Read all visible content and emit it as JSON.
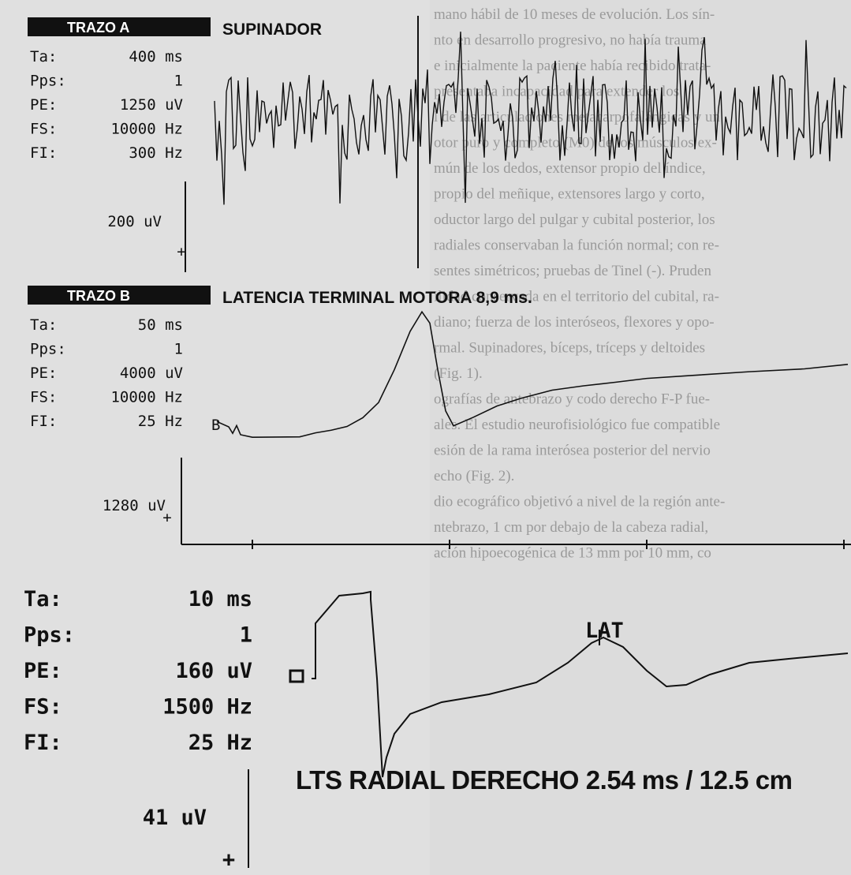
{
  "background_text": [
    "mano hábil de 10 meses de evolución. Los sín-",
    "nto en desarrollo progresivo, no había trauma",
    "e inicialmente la paciente había recibido trata-",
    "presentaba incapacidad para extender los",
    "l de las articulaciones metacarpofalángicas y un",
    "otor puro y completo (M0) de los músculos ex-",
    "mún de los dedos, extensor propio del índice,",
    "propio del meñique, extensores largo y corto,",
    "oductor largo del pulgar y cubital posterior, los",
    "radiales conservaban la función normal; con re-",
    "sentes simétricos; pruebas de Tinel (-). Pruden",
    "ilidad conservada en el territorio del cubital, ra-",
    "diano; fuerza de los interóseos, flexores y opo-",
    "rmal. Supinadores, bíceps, tríceps y deltoides",
    "(Fig. 1).",
    "ografías de antebrazo y codo derecho F-P fue-",
    "ales. El estudio neurofisiológico fue compatible",
    "esión de la rama interósea posterior del nervio",
    "echo (Fig. 2).",
    "dio ecográfico objetivó a nivel de la región ante-",
    "ntebrazo, 1 cm por debajo de la cabeza radial,",
    "ación hipoecogénica de 13 mm por 10 mm, co"
  ],
  "panels": [
    {
      "label": "TRAZO A",
      "title": "SUPINADOR",
      "params": [
        [
          "Ta:",
          "400 ms"
        ],
        [
          "Pps:",
          "1"
        ],
        [
          "PE:",
          "1250 uV"
        ],
        [
          "FS:",
          "10000 Hz"
        ],
        [
          "FI:",
          "300 Hz"
        ]
      ],
      "scale": "200 uV",
      "polarity": "+"
    },
    {
      "label": "TRAZO B",
      "title": "LATENCIA TERMINAL MOTORA 8,9 ms.",
      "params": [
        [
          "Ta:",
          "50 ms"
        ],
        [
          "Pps:",
          "1"
        ],
        [
          "PE:",
          "4000 uV"
        ],
        [
          "FS:",
          "10000 Hz"
        ],
        [
          "FI:",
          "25 Hz"
        ]
      ],
      "trace_label": "B",
      "scale": "1280 uV",
      "polarity": "+"
    }
  ],
  "panel_c": {
    "params": [
      [
        "Ta:",
        "10 ms"
      ],
      [
        "Pps:",
        "1"
      ],
      [
        "PE:",
        "160 uV"
      ],
      [
        "FS:",
        "1500 Hz"
      ],
      [
        "FI:",
        "25 Hz"
      ]
    ],
    "marker": "LAT",
    "caption": "LTS RADIAL DERECHO 2.54 ms / 12.5 cm",
    "scale": "41 uV",
    "polarity": "+"
  }
}
